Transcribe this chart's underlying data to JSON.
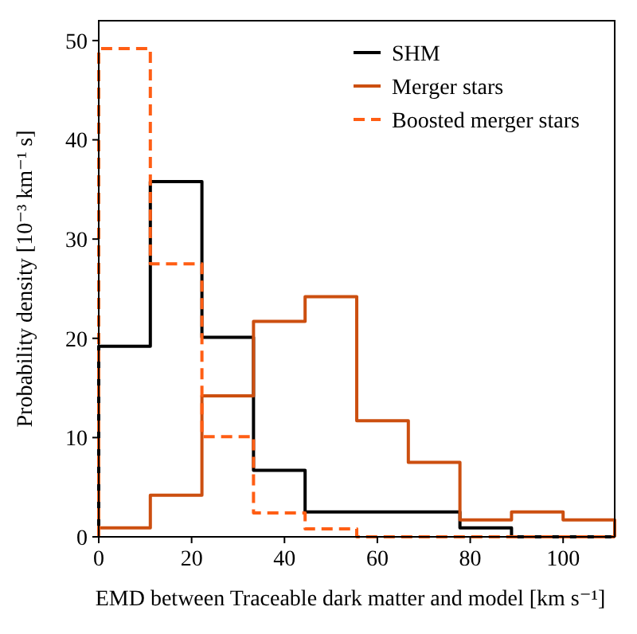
{
  "chart_data": {
    "type": "histogram",
    "xlabel": "EMD between Traceable dark matter and model [km s⁻¹]",
    "ylabel": "Probability density [10⁻³ km⁻¹ s]",
    "bins": [
      0,
      11.11,
      22.22,
      33.33,
      44.44,
      55.56,
      66.67,
      77.78,
      88.89,
      100,
      111.11
    ],
    "series": [
      {
        "name": "SHM",
        "color": "#000000",
        "line_style": "solid",
        "values": [
          19.2,
          35.8,
          20.1,
          6.7,
          2.5,
          2.5,
          2.5,
          0.9,
          0,
          0
        ]
      },
      {
        "name": "Merger stars",
        "color": "#cc4f10",
        "line_style": "solid",
        "values": [
          0.9,
          4.2,
          14.2,
          21.7,
          24.2,
          11.7,
          7.5,
          1.7,
          2.5,
          1.7
        ]
      },
      {
        "name": "Boosted merger stars",
        "color": "#ff5e14",
        "line_style": "dashed",
        "values": [
          49.2,
          27.5,
          10.1,
          2.4,
          0.8,
          0,
          0,
          0,
          0,
          0
        ]
      }
    ],
    "xlim": [
      0,
      111.11
    ],
    "ylim": [
      0,
      52
    ],
    "xticks": [
      0,
      20,
      40,
      60,
      80,
      100
    ],
    "yticks": [
      0,
      10,
      20,
      30,
      40,
      50
    ],
    "grid": false,
    "legend": "top right"
  }
}
